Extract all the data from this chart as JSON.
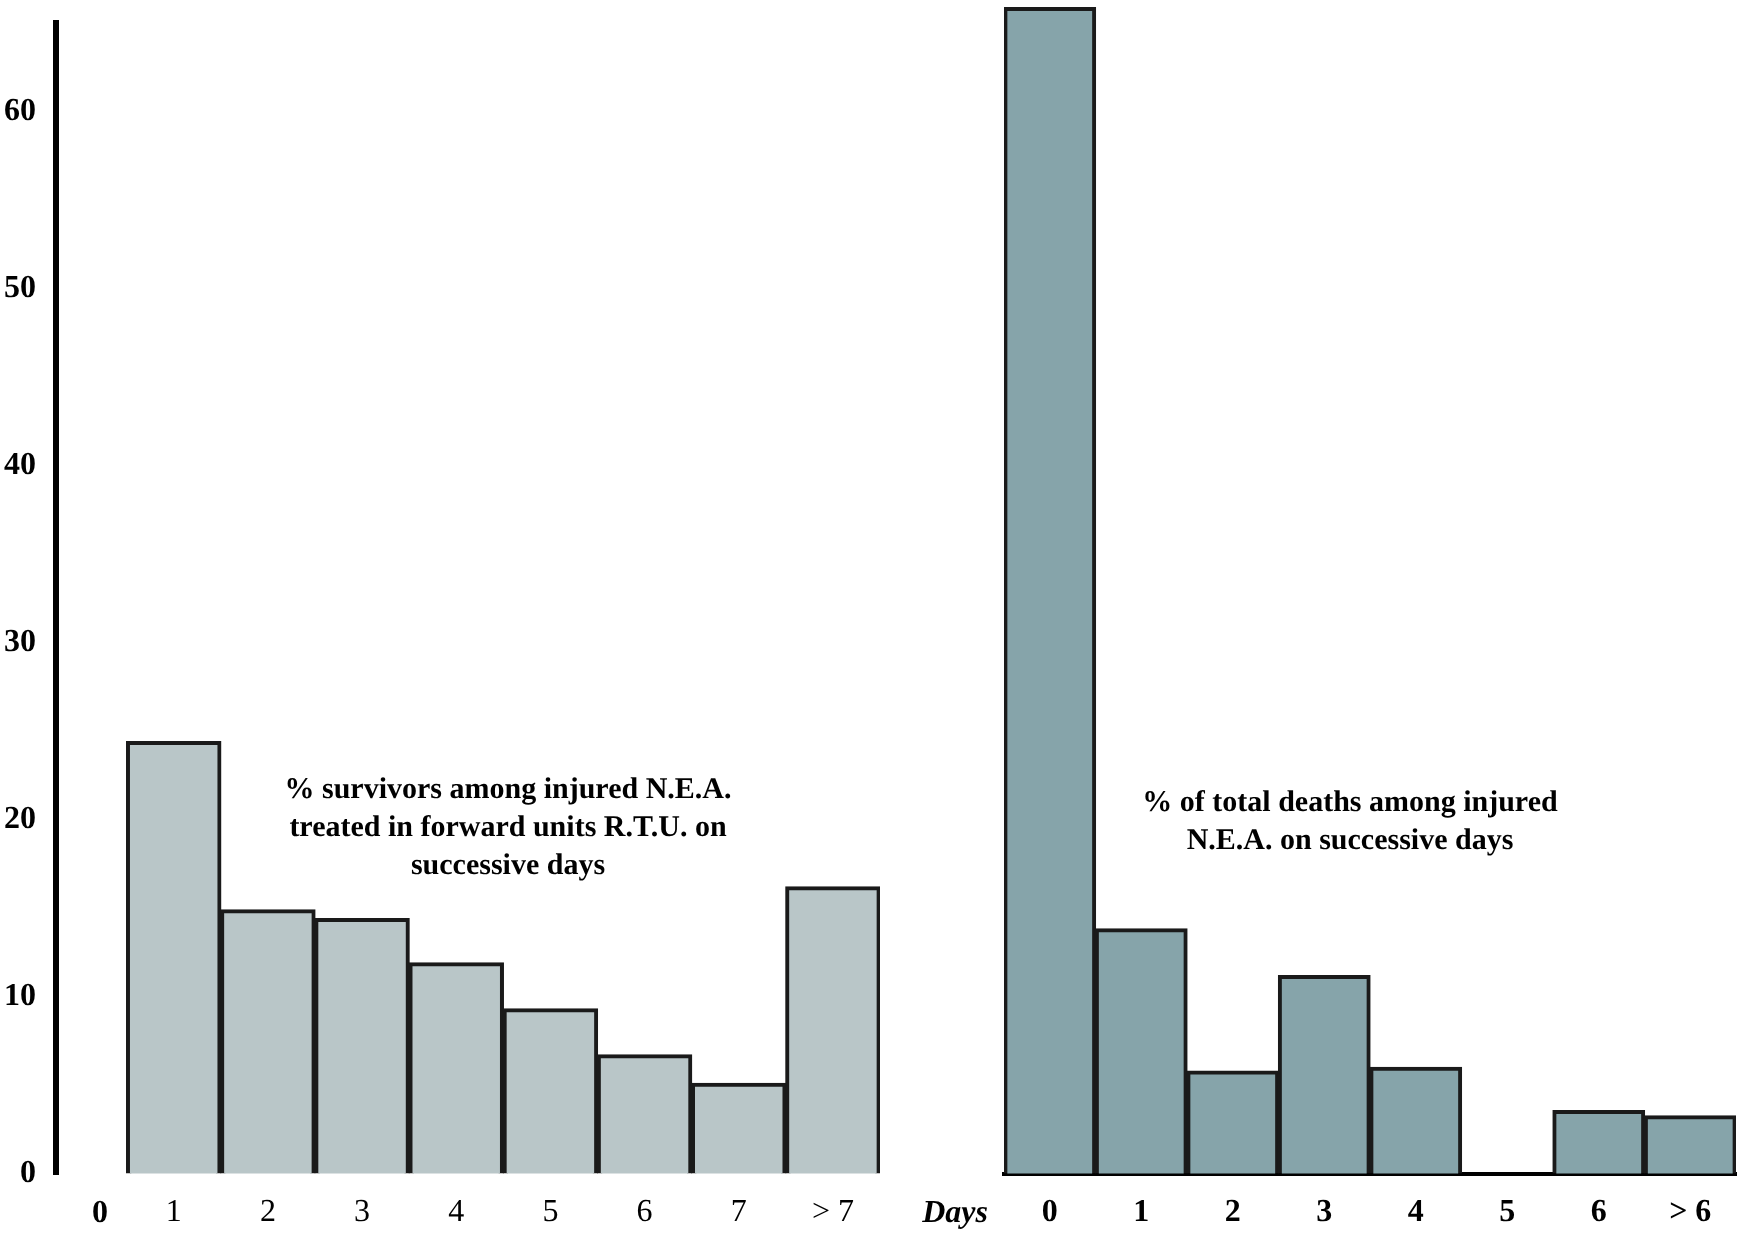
{
  "chart_data": [
    {
      "type": "bar",
      "title": "% survivors among injured N.E.A. treated in forward units R.T.U. on successive days",
      "categories": [
        "1",
        "2",
        "3",
        "4",
        "5",
        "6",
        "7",
        "> 7"
      ],
      "values": [
        24.4,
        14.9,
        14.4,
        11.9,
        9.3,
        6.7,
        5.1,
        16.2
      ],
      "color": "#b9c6c8",
      "ylim": [
        0,
        65
      ],
      "yticks": [
        0,
        10,
        20,
        30,
        40,
        50,
        60
      ],
      "annotations": [
        "0"
      ]
    },
    {
      "type": "bar",
      "title": "% of total deaths among injured N.E.A. on successive days",
      "xlabel": "Days",
      "categories": [
        "0",
        "1",
        "2",
        "3",
        "4",
        "5",
        "6",
        "> 6"
      ],
      "values": [
        64.8,
        13.6,
        5.7,
        11.0,
        5.9,
        0,
        3.5,
        3.2
      ],
      "color": "#86a4aa",
      "ylim": [
        0,
        65
      ],
      "yticks": [
        0,
        10,
        20,
        30,
        40,
        50,
        60
      ],
      "tick_labels": "x"
    }
  ]
}
